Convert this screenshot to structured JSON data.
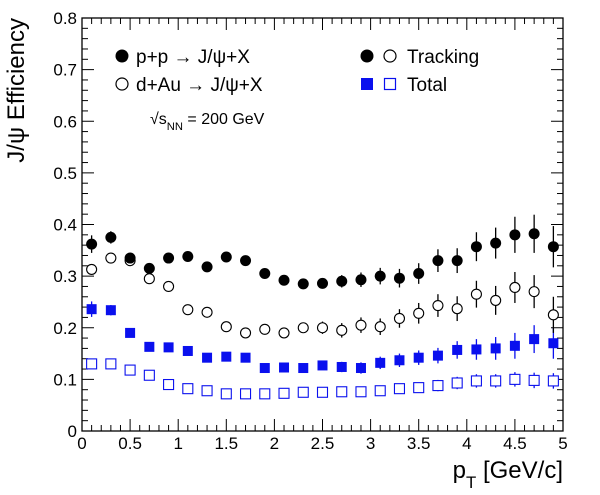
{
  "chart_data": {
    "type": "scatter",
    "xlabel": "p_T [GeV/c]",
    "ylabel": "J/ψ Efficiency",
    "xlim": [
      0,
      5
    ],
    "ylim": [
      0,
      0.8
    ],
    "x_ticks": [
      "0",
      "0.5",
      "1",
      "1.5",
      "2",
      "2.5",
      "3",
      "3.5",
      "4",
      "4.5",
      "5"
    ],
    "y_ticks": [
      "0",
      "0.1",
      "0.2",
      "0.3",
      "0.4",
      "0.5",
      "0.6",
      "0.7",
      "0.8"
    ],
    "grid": false,
    "legend_position": "top",
    "legend": {
      "pp_label": "p+p → J/ψ+X",
      "dau_label": "d+Au → J/ψ+X",
      "tracking_label": "Tracking",
      "total_label": "Total"
    },
    "annotation": "√s_NN = 200 GeV",
    "x": [
      0.1,
      0.3,
      0.5,
      0.7,
      0.9,
      1.1,
      1.3,
      1.5,
      1.7,
      1.9,
      2.1,
      2.3,
      2.5,
      2.7,
      2.9,
      3.1,
      3.3,
      3.5,
      3.7,
      3.9,
      4.1,
      4.3,
      4.5,
      4.7,
      4.9
    ],
    "series": [
      {
        "name": "p+p → J/ψ+X Tracking",
        "marker": "circle-filled",
        "color": "#000000",
        "values": [
          0.362,
          0.375,
          0.335,
          0.315,
          0.335,
          0.338,
          0.318,
          0.337,
          0.33,
          0.305,
          0.292,
          0.285,
          0.286,
          0.29,
          0.293,
          0.3,
          0.296,
          0.305,
          0.33,
          0.33,
          0.357,
          0.364,
          0.38,
          0.382,
          0.357
        ],
        "errors": [
          0.017,
          0.012,
          0.008,
          0.008,
          0.008,
          0.008,
          0.008,
          0.008,
          0.008,
          0.008,
          0.008,
          0.01,
          0.01,
          0.012,
          0.014,
          0.016,
          0.018,
          0.02,
          0.022,
          0.024,
          0.028,
          0.03,
          0.035,
          0.037,
          0.04
        ]
      },
      {
        "name": "d+Au → J/ψ+X Tracking",
        "marker": "circle-open",
        "color": "#000000",
        "values": [
          0.313,
          0.335,
          0.33,
          0.295,
          0.28,
          0.235,
          0.23,
          0.202,
          0.19,
          0.197,
          0.19,
          0.2,
          0.2,
          0.195,
          0.205,
          0.202,
          0.218,
          0.228,
          0.243,
          0.237,
          0.265,
          0.253,
          0.278,
          0.27,
          0.225
        ],
        "errors": [
          0.01,
          0.008,
          0.007,
          0.007,
          0.007,
          0.007,
          0.007,
          0.007,
          0.007,
          0.007,
          0.009,
          0.01,
          0.012,
          0.014,
          0.015,
          0.016,
          0.018,
          0.02,
          0.022,
          0.024,
          0.026,
          0.028,
          0.03,
          0.032,
          0.035
        ]
      },
      {
        "name": "p+p → J/ψ+X Total",
        "marker": "square-filled",
        "color": "#0a10ee",
        "values": [
          0.236,
          0.234,
          0.19,
          0.163,
          0.162,
          0.155,
          0.142,
          0.144,
          0.142,
          0.122,
          0.123,
          0.122,
          0.127,
          0.124,
          0.122,
          0.132,
          0.137,
          0.142,
          0.146,
          0.157,
          0.158,
          0.16,
          0.165,
          0.178,
          0.17
        ],
        "errors": [
          0.015,
          0.01,
          0.006,
          0.006,
          0.006,
          0.006,
          0.006,
          0.006,
          0.006,
          0.006,
          0.006,
          0.007,
          0.008,
          0.01,
          0.011,
          0.012,
          0.013,
          0.014,
          0.015,
          0.017,
          0.02,
          0.022,
          0.025,
          0.027,
          0.03
        ]
      },
      {
        "name": "d+Au → J/ψ+X Total",
        "marker": "square-open",
        "color": "#0a10ee",
        "values": [
          0.13,
          0.13,
          0.118,
          0.108,
          0.09,
          0.082,
          0.078,
          0.072,
          0.072,
          0.072,
          0.073,
          0.075,
          0.075,
          0.076,
          0.076,
          0.078,
          0.082,
          0.084,
          0.088,
          0.093,
          0.097,
          0.097,
          0.1,
          0.098,
          0.097
        ],
        "errors": [
          0.006,
          0.005,
          0.004,
          0.004,
          0.004,
          0.004,
          0.004,
          0.004,
          0.004,
          0.004,
          0.004,
          0.005,
          0.006,
          0.007,
          0.008,
          0.009,
          0.01,
          0.01,
          0.011,
          0.012,
          0.013,
          0.013,
          0.014,
          0.015,
          0.015
        ]
      }
    ]
  }
}
